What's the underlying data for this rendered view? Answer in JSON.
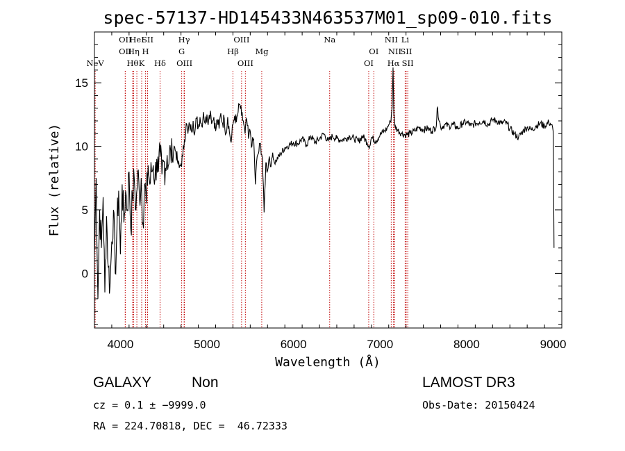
{
  "chart_data": {
    "type": "line",
    "title": "spec-57137-HD145433N463537M01_sp09-010.fits",
    "xlabel": "Wavelength (Å)",
    "ylabel": "Flux (relative)",
    "xlim": [
      3700,
      9100
    ],
    "ylim": [
      -4.3,
      19.0
    ],
    "xticks": [
      4000,
      5000,
      6000,
      7000,
      8000,
      9000
    ],
    "yticks": [
      0,
      5,
      10,
      15
    ],
    "grid": false,
    "series": [
      {
        "x": [
          3700,
          3720,
          3740,
          3760,
          3780,
          3800,
          3820,
          3840,
          3860,
          3880,
          3900,
          3920,
          3940,
          3960,
          3980,
          4000,
          4020,
          4040,
          4060,
          4080,
          4100,
          4120,
          4140,
          4160,
          4180,
          4200,
          4220,
          4240,
          4260,
          4280,
          4300,
          4320,
          4340,
          4360,
          4380,
          4400,
          4420,
          4440,
          4460,
          4480,
          4500,
          4520,
          4540,
          4560,
          4580,
          4600,
          4620,
          4640,
          4660,
          4680,
          4700,
          4720,
          4740,
          4760,
          4780,
          4800,
          4820,
          4840,
          4860,
          4880,
          4900,
          4920,
          4940,
          4960,
          4980,
          5000,
          5020,
          5040,
          5060,
          5080,
          5100,
          5120,
          5140,
          5160,
          5180,
          5200,
          5220,
          5240,
          5260,
          5280,
          5300,
          5320,
          5340,
          5360,
          5380,
          5400,
          5420,
          5440,
          5460,
          5480,
          5500,
          5520,
          5540,
          5560,
          5580,
          5600,
          5620,
          5640,
          5660,
          5680,
          5700,
          5720,
          5740,
          5760,
          5780,
          5800,
          5850,
          5900,
          5950,
          6000,
          6050,
          6100,
          6150,
          6200,
          6250,
          6300,
          6350,
          6400,
          6450,
          6500,
          6550,
          6600,
          6650,
          6700,
          6750,
          6800,
          6850,
          6880,
          6900,
          6950,
          7000,
          7050,
          7080,
          7100,
          7120,
          7130,
          7140,
          7150,
          7160,
          7170,
          7200,
          7250,
          7300,
          7350,
          7400,
          7450,
          7500,
          7550,
          7600,
          7650,
          7660,
          7700,
          7750,
          7800,
          7850,
          7900,
          7950,
          8000,
          8050,
          8100,
          8150,
          8200,
          8250,
          8300,
          8350,
          8400,
          8450,
          8500,
          8550,
          8600,
          8650,
          8700,
          8750,
          8800,
          8850,
          8900,
          8950,
          8980,
          9000,
          9010
        ],
        "y": [
          1.5,
          7.5,
          -2.0,
          5.0,
          2.0,
          6.0,
          -1.5,
          4.5,
          0.5,
          -1.0,
          2.5,
          5.0,
          0.0,
          3.5,
          6.5,
          1.5,
          7.0,
          4.0,
          6.5,
          5.0,
          8.0,
          3.5,
          6.0,
          7.5,
          5.0,
          8.0,
          6.0,
          7.5,
          4.0,
          7.0,
          5.5,
          8.5,
          7.0,
          8.0,
          8.5,
          7.5,
          9.0,
          8.0,
          9.2,
          7.8,
          8.8,
          8.3,
          9.3,
          8.6,
          9.7,
          8.9,
          10.0,
          9.6,
          8.8,
          8.3,
          8.6,
          9.2,
          10.5,
          11.8,
          11.0,
          11.7,
          11.2,
          12.0,
          11.1,
          12.2,
          11.5,
          12.3,
          11.6,
          12.7,
          11.8,
          12.5,
          12.1,
          12.8,
          11.9,
          12.3,
          11.2,
          12.1,
          11.4,
          12.6,
          11.8,
          12.2,
          11.0,
          12.3,
          11.1,
          10.3,
          11.7,
          12.4,
          11.9,
          12.7,
          13.3,
          12.4,
          12.0,
          11.0,
          12.1,
          10.6,
          11.2,
          10.0,
          10.6,
          7.0,
          9.2,
          9.6,
          10.2,
          9.1,
          4.8,
          8.7,
          8.1,
          9.2,
          8.4,
          9.5,
          8.7,
          8.9,
          9.4,
          9.9,
          10.1,
          10.3,
          10.2,
          10.6,
          10.1,
          10.8,
          10.3,
          10.6,
          11.0,
          10.4,
          10.8,
          10.6,
          10.5,
          10.6,
          10.8,
          10.6,
          10.4,
          10.8,
          10.3,
          10.0,
          10.7,
          10.4,
          10.9,
          11.2,
          11.4,
          11.7,
          11.9,
          12.4,
          13.1,
          16.2,
          12.5,
          11.6,
          11.3,
          11.0,
          10.9,
          11.0,
          11.2,
          11.5,
          11.3,
          11.4,
          11.2,
          11.6,
          13.0,
          11.5,
          11.7,
          11.6,
          11.7,
          11.4,
          11.8,
          11.9,
          11.6,
          11.8,
          11.9,
          12.0,
          11.7,
          12.1,
          12.0,
          11.8,
          11.9,
          11.4,
          11.0,
          10.7,
          11.2,
          11.5,
          11.3,
          11.6,
          11.8,
          11.6,
          11.9,
          11.7,
          11.2,
          2.0
        ]
      }
    ],
    "lines": [
      {
        "label": "NeV",
        "x": 3709,
        "tier": 2
      },
      {
        "label": "OII",
        "x": 4056,
        "tier": 0
      },
      {
        "label": "OII",
        "x": 4056,
        "tier": 1
      },
      {
        "label": "Hθ",
        "x": 4141,
        "tier": 2
      },
      {
        "label": "Hη",
        "x": 4153,
        "tier": 1
      },
      {
        "label": "HeI",
        "x": 4190,
        "tier": 0
      },
      {
        "label": "K",
        "x": 4246,
        "tier": 2
      },
      {
        "label": "H",
        "x": 4290,
        "tier": 1
      },
      {
        "label": "SII",
        "x": 4314,
        "tier": 0
      },
      {
        "label": "Hδ",
        "x": 4458,
        "tier": 2
      },
      {
        "label": "G",
        "x": 4708,
        "tier": 1
      },
      {
        "label": "OIII",
        "x": 4740,
        "tier": 2
      },
      {
        "label": "Hγ",
        "x": 4736,
        "tier": 0
      },
      {
        "label": "Hβ",
        "x": 5300,
        "tier": 1
      },
      {
        "label": "OIII",
        "x": 5400,
        "tier": 0
      },
      {
        "label": "OIII",
        "x": 5444,
        "tier": 2
      },
      {
        "label": "Mg",
        "x": 5633,
        "tier": 1
      },
      {
        "label": "Na",
        "x": 6418,
        "tier": 0
      },
      {
        "label": "OI",
        "x": 6869,
        "tier": 2
      },
      {
        "label": "OI",
        "x": 6928,
        "tier": 1
      },
      {
        "label": "NII",
        "x": 7129,
        "tier": 0
      },
      {
        "label": "NII",
        "x": 7170,
        "tier": 1
      },
      {
        "label": "Hα",
        "x": 7155,
        "tier": 2
      },
      {
        "label": "Li",
        "x": 7290,
        "tier": 0
      },
      {
        "label": "SII",
        "x": 7302,
        "tier": 1
      },
      {
        "label": "SII",
        "x": 7320,
        "tier": 2
      }
    ]
  },
  "info": {
    "class": "GALAXY",
    "subclass": "Non",
    "survey": "LAMOST DR3",
    "cz": "cz = 0.1 ± −9999.0",
    "obs_date": "Obs-Date: 20150424",
    "coords": "RA = 224.70818, DEC =  46.72333"
  }
}
